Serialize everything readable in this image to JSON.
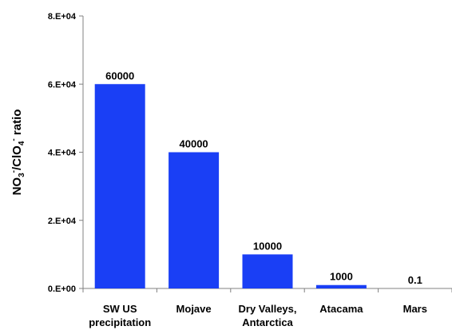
{
  "chart_data": {
    "type": "bar",
    "categories": [
      [
        "SW US",
        "precipitation"
      ],
      [
        "Mojave"
      ],
      [
        "Dry Valleys,",
        "Antarctica"
      ],
      [
        "Atacama"
      ],
      [
        "Mars"
      ]
    ],
    "values": [
      60000,
      40000,
      10000,
      1000,
      0.1
    ],
    "data_labels": [
      "60000",
      "40000",
      "10000",
      "1000",
      "0.1"
    ],
    "ylabel": {
      "parts": [
        {
          "text": "NO",
          "shift": "none"
        },
        {
          "text": "3",
          "shift": "sub"
        },
        {
          "text": "-",
          "shift": "super"
        },
        {
          "text": "/ClO",
          "shift": "none"
        },
        {
          "text": "4",
          "shift": "sub"
        },
        {
          "text": "-",
          "shift": "super"
        },
        {
          "text": " ratio",
          "shift": "none"
        }
      ]
    },
    "ylim": [
      0,
      80000
    ],
    "yticks": [
      {
        "value": 0,
        "label": "0.E+00"
      },
      {
        "value": 20000,
        "label": "2.E+04"
      },
      {
        "value": 40000,
        "label": "4.E+04"
      },
      {
        "value": 60000,
        "label": "6.E+04"
      },
      {
        "value": 80000,
        "label": "8.E+04"
      }
    ],
    "bar_color": "#1a3ff5",
    "grid": false,
    "legend": "none"
  }
}
